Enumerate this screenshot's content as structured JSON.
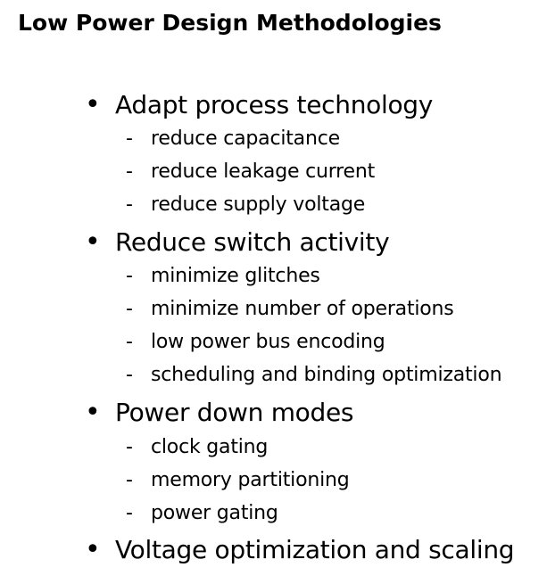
{
  "slide": {
    "title": "Low Power Design Methodologies",
    "bullet_marker": "•",
    "sub_marker": "-",
    "bullets": [
      {
        "label": "Adapt process technology",
        "subs": [
          "reduce capacitance",
          "reduce leakage current",
          "reduce supply voltage"
        ]
      },
      {
        "label": "Reduce switch activity",
        "subs": [
          "minimize glitches",
          "minimize number of operations",
          "low power bus encoding",
          "scheduling and binding optimization"
        ]
      },
      {
        "label": "Power down modes",
        "subs": [
          "clock gating",
          "memory partitioning",
          "power gating"
        ]
      },
      {
        "label": "Voltage optimization and scaling",
        "subs": []
      }
    ]
  }
}
